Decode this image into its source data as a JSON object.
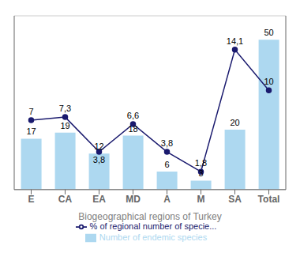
{
  "chart_data": {
    "type": "bar",
    "xlabel": "Biogeographical regions of Turkey",
    "categories": [
      "E",
      "CA",
      "EA",
      "MD",
      "A",
      "M",
      "SA",
      "Total"
    ],
    "series": [
      {
        "name": "Number of endemic species",
        "type": "bar",
        "color": "#add8f0",
        "values": [
          17,
          19,
          12,
          18,
          6,
          3,
          20,
          50
        ]
      },
      {
        "name": "% of regional number of specie...",
        "type": "line",
        "axis": "y2",
        "color": "#1a1a6e",
        "marker": "circle",
        "values": [
          7.0,
          7.3,
          3.8,
          6.6,
          3.8,
          1.8,
          14.1,
          10.0
        ],
        "value_labels": [
          "7",
          "7,3",
          "3,8",
          "6,6",
          "3,8",
          "1,8",
          "14,1",
          "10"
        ]
      }
    ],
    "ylim": [
      0,
      58
    ],
    "yticks": [
      10,
      20,
      30,
      40,
      50
    ],
    "y2lim": [
      0,
      17.5
    ],
    "y2ticks": [],
    "grid": true,
    "data_labels": true,
    "tick_labels": "x",
    "legend": "bottom"
  }
}
